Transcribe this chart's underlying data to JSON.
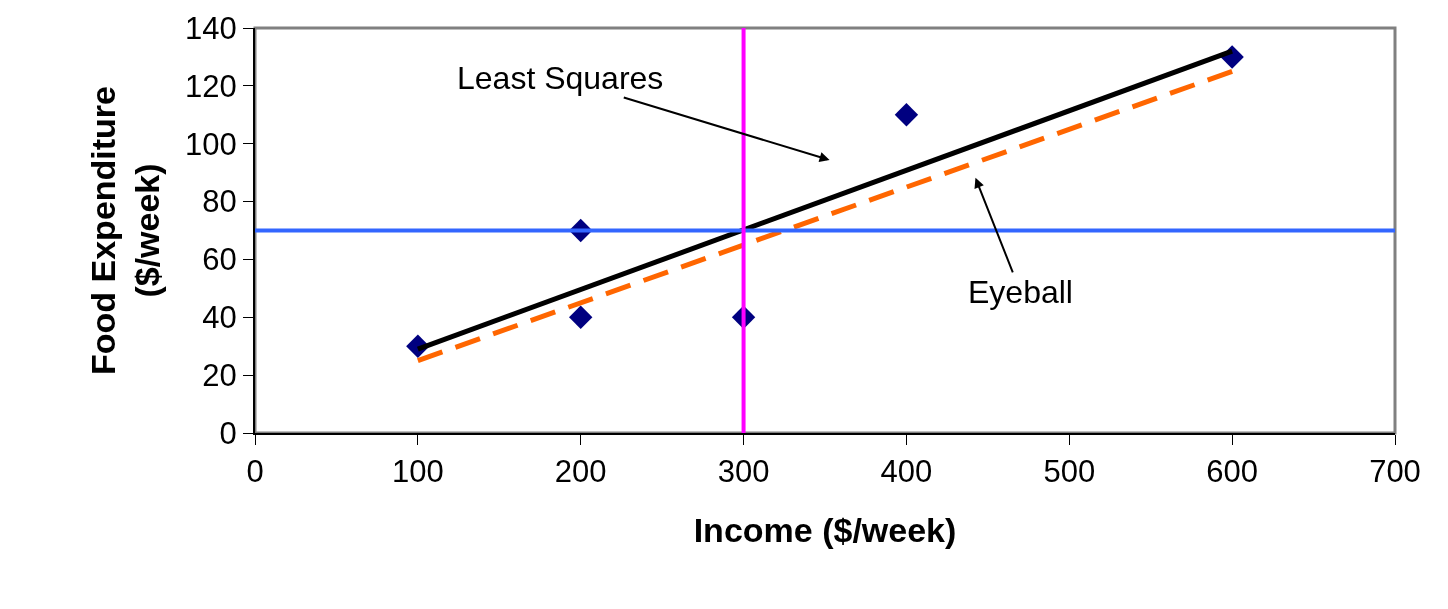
{
  "chart_data": {
    "type": "scatter",
    "xlabel": "Income ($/week)",
    "ylabel": "Food Expenditure\n($/week)",
    "xlim": [
      0,
      700
    ],
    "xticks": [
      0,
      100,
      200,
      300,
      400,
      500,
      600,
      700
    ],
    "ylim": [
      0,
      140
    ],
    "yticks": [
      0,
      20,
      40,
      60,
      80,
      100,
      120,
      140
    ],
    "grid": false,
    "series": [
      {
        "marker": "diamond",
        "color": "#000080",
        "x": [
          100,
          200,
          200,
          300,
          400,
          600
        ],
        "values": [
          30,
          70,
          40,
          40,
          110,
          130
        ]
      },
      {
        "type": "line",
        "marker": "none",
        "color": "#000000",
        "line_style": "solid",
        "x": [
          100,
          600
        ],
        "values": [
          29,
          132
        ]
      },
      {
        "type": "line",
        "marker": "none",
        "color": "#ff6600",
        "line_style": "dashed",
        "x": [
          100,
          600
        ],
        "values": [
          25,
          125
        ]
      }
    ],
    "ref_lines": [
      {
        "axis": "y",
        "value": 70,
        "color": "#3366ff"
      },
      {
        "axis": "x",
        "value": 300,
        "color": "#ff00ff"
      }
    ],
    "annotations": [
      "Least Squares",
      "Eyeball"
    ]
  }
}
